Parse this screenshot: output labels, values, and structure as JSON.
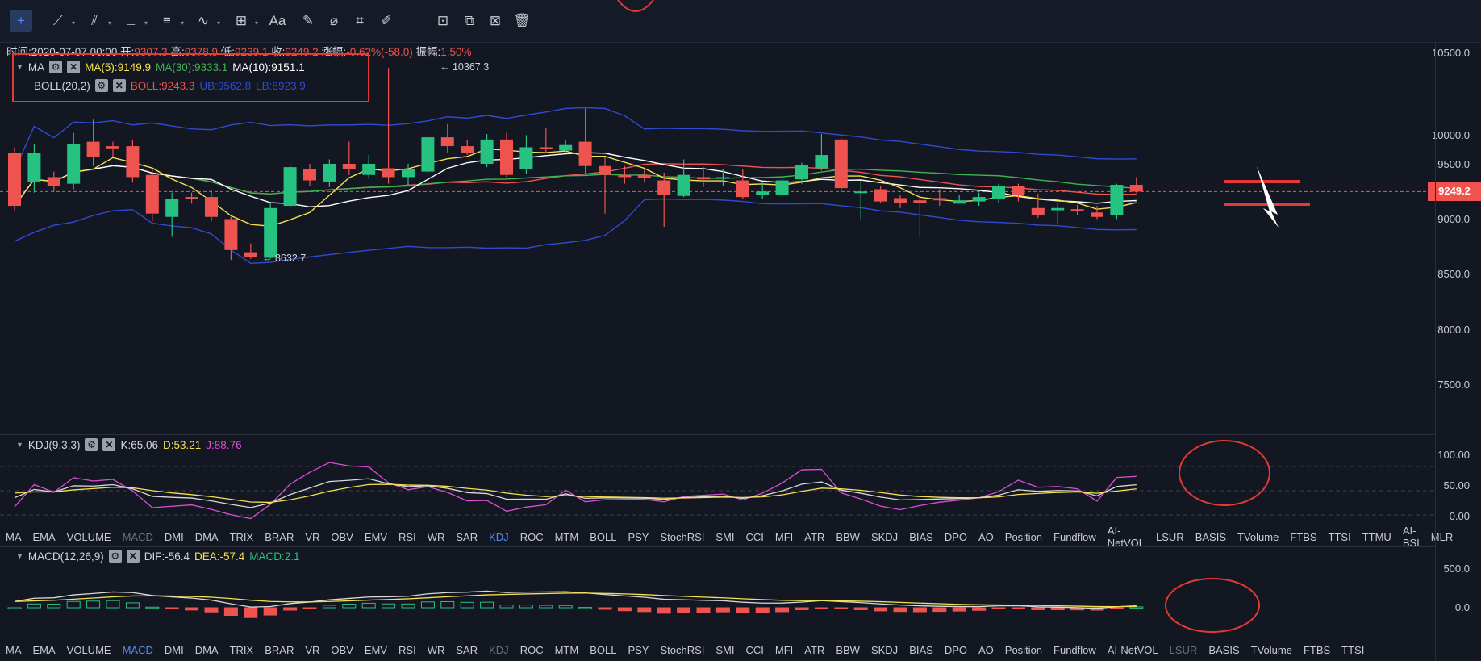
{
  "toolbar": {
    "tools": [
      {
        "name": "crosshair-icon",
        "glyph": "+",
        "caret": false
      },
      {
        "name": "trend-line-icon",
        "glyph": "⟋",
        "caret": true
      },
      {
        "name": "parallel-channel-icon",
        "glyph": "⫽",
        "caret": true
      },
      {
        "name": "angle-icon",
        "glyph": "∟",
        "caret": true
      },
      {
        "name": "fib-levels-icon",
        "glyph": "≡",
        "caret": true
      },
      {
        "name": "wave-icon",
        "glyph": "∿",
        "caret": true
      },
      {
        "name": "measure-icon",
        "glyph": "⊞",
        "caret": true
      },
      {
        "name": "text-icon",
        "glyph": "Aa",
        "caret": false
      },
      {
        "name": "brush-icon",
        "glyph": "✎",
        "caret": false
      },
      {
        "name": "magnet-icon",
        "glyph": "⌀",
        "caret": false
      },
      {
        "name": "ruler-icon",
        "glyph": "⌗",
        "caret": false
      },
      {
        "name": "pen-icon",
        "glyph": "✐",
        "caret": false
      },
      {
        "name": "lock-icon",
        "glyph": "⊡",
        "caret": false
      },
      {
        "name": "copy-icon",
        "glyph": "⧉",
        "caret": false
      },
      {
        "name": "settings-grid-icon",
        "glyph": "⊠",
        "caret": false
      },
      {
        "name": "trash-icon",
        "glyph": "🗑",
        "caret": false
      }
    ]
  },
  "info": {
    "time_label": "时间:",
    "time": "2020-07-07 00:00",
    "open_label": "开:",
    "open": "9307.3",
    "high_label": "高:",
    "high": "9378.9",
    "low_label": "低:",
    "low": "9239.1",
    "close_label": "收:",
    "close": "9249.2",
    "change_label": "涨幅:",
    "change": "-0.62%(-58.0)",
    "amp_label": "振幅:",
    "amp": "1.50%"
  },
  "ma_legend": {
    "name": "MA",
    "ma5": "MA(5):9149.9",
    "ma30": "MA(30):9333.1",
    "ma10": "MA(10):9151.1"
  },
  "boll_legend": {
    "name": "BOLL(20,2)",
    "boll": "BOLL:9243.3",
    "ub": "UB:9562.8",
    "lb": "LB:8923.9"
  },
  "annotations": {
    "high": "← 10367.3",
    "low": "← 8632.7"
  },
  "price_axis": [
    "10500.0",
    "10000.0",
    "9500.0",
    "9000.0",
    "8500.0",
    "8000.0",
    "7500.0"
  ],
  "current_price": "9249.2",
  "kdj_legend": {
    "name": "KDJ(9,3,3)",
    "k": "K:65.06",
    "d": "D:53.21",
    "j": "J:88.76"
  },
  "kdj_axis": [
    "100.00",
    "50.00",
    "0.00"
  ],
  "macd_legend": {
    "name": "MACD(12,26,9)",
    "dif": "DIF:-56.4",
    "dea": "DEA:-57.4",
    "macd": "MACD:2.1"
  },
  "macd_axis": [
    "500.0",
    "0.0"
  ],
  "tabs1": [
    "MA",
    "EMA",
    "VOLUME",
    "MACD",
    "DMI",
    "DMA",
    "TRIX",
    "BRAR",
    "VR",
    "OBV",
    "EMV",
    "RSI",
    "WR",
    "SAR",
    "KDJ",
    "ROC",
    "MTM",
    "BOLL",
    "PSY",
    "StochRSI",
    "SMI",
    "CCI",
    "MFI",
    "ATR",
    "BBW",
    "SKDJ",
    "BIAS",
    "DPO",
    "AO",
    "Position",
    "Fundflow",
    "AI-NetVOL",
    "LSUR",
    "BASIS",
    "TVolume",
    "FTBS",
    "TTSI",
    "TTMU",
    "AI-BSI",
    "MLR"
  ],
  "tabs1_selected": "KDJ",
  "tabs1_dim": [
    "MACD"
  ],
  "tabs2": [
    "MA",
    "EMA",
    "VOLUME",
    "MACD",
    "DMI",
    "DMA",
    "TRIX",
    "BRAR",
    "VR",
    "OBV",
    "EMV",
    "RSI",
    "WR",
    "SAR",
    "KDJ",
    "ROC",
    "MTM",
    "BOLL",
    "PSY",
    "StochRSI",
    "SMI",
    "CCI",
    "MFI",
    "ATR",
    "BBW",
    "SKDJ",
    "BIAS",
    "DPO",
    "AO",
    "Position",
    "Fundflow",
    "AI-NetVOL",
    "LSUR",
    "BASIS",
    "TVolume",
    "FTBS",
    "TTSI"
  ],
  "tabs2_selected": "MACD",
  "tabs2_dim": [
    "KDJ",
    "LSUR"
  ],
  "colors": {
    "up": "#26c281",
    "down": "#ef5350",
    "ma5": "#f4e04d",
    "ma10": "#ffffff",
    "ma30": "#3fb34f",
    "boll": "#ef5350",
    "band": "#2f4bd1",
    "kdj_k": "#d8d8d8",
    "kdj_d": "#f4e04d",
    "kdj_j": "#d94fd6",
    "highlight": "#e53935"
  },
  "chart_data": {
    "type": "candlestick",
    "price_scale": [
      7500,
      10500
    ],
    "candles": [
      [
        9600,
        9120,
        9650,
        9080
      ],
      [
        9340,
        9600,
        9680,
        9240
      ],
      [
        9380,
        9300,
        9430,
        9250
      ],
      [
        9320,
        9680,
        9780,
        9270
      ],
      [
        9700,
        9560,
        9900,
        9480
      ],
      [
        9660,
        9640,
        9700,
        9560
      ],
      [
        9660,
        9380,
        9720,
        9330
      ],
      [
        9400,
        9050,
        9450,
        8980
      ],
      [
        9020,
        9180,
        9240,
        8840
      ],
      [
        9200,
        9180,
        9240,
        9140
      ],
      [
        9200,
        9020,
        9260,
        8980
      ],
      [
        9000,
        8720,
        9020,
        8630
      ],
      [
        8700,
        8660,
        8780,
        8640
      ],
      [
        8650,
        9100,
        9150,
        8640
      ],
      [
        9120,
        9470,
        9500,
        9100
      ],
      [
        9450,
        9350,
        9500,
        9300
      ],
      [
        9340,
        9500,
        9540,
        9290
      ],
      [
        9500,
        9450,
        9700,
        9400
      ],
      [
        9400,
        9500,
        9580,
        9370
      ],
      [
        9460,
        9380,
        10367,
        9320
      ],
      [
        9380,
        9450,
        9500,
        9300
      ],
      [
        9430,
        9740,
        9760,
        9400
      ],
      [
        9740,
        9660,
        9860,
        9600
      ],
      [
        9660,
        9600,
        9720,
        9580
      ],
      [
        9500,
        9720,
        9770,
        9470
      ],
      [
        9720,
        9400,
        9780,
        9380
      ],
      [
        9450,
        9650,
        9760,
        9410
      ],
      [
        9650,
        9640,
        9820,
        9600
      ],
      [
        9620,
        9670,
        9720,
        9600
      ],
      [
        9700,
        9480,
        10000,
        9400
      ],
      [
        9480,
        9400,
        9560,
        9050
      ],
      [
        9400,
        9380,
        9480,
        9320
      ],
      [
        9400,
        9370,
        9450,
        9330
      ],
      [
        9350,
        9220,
        9420,
        8930
      ],
      [
        9210,
        9400,
        9540,
        9200
      ],
      [
        9380,
        9360,
        9470,
        9290
      ],
      [
        9380,
        9380,
        9450,
        9300
      ],
      [
        9350,
        9200,
        9450,
        9180
      ],
      [
        9220,
        9250,
        9330,
        9180
      ],
      [
        9220,
        9350,
        9380,
        9200
      ],
      [
        9360,
        9490,
        9510,
        9320
      ],
      [
        9460,
        9580,
        9770,
        9440
      ],
      [
        9720,
        9280,
        9730,
        9250
      ],
      [
        9250,
        9250,
        9350,
        9000
      ],
      [
        9270,
        9160,
        9300,
        9150
      ],
      [
        9190,
        9150,
        9220,
        9100
      ],
      [
        9170,
        9150,
        9250,
        8840
      ],
      [
        9190,
        9170,
        9270,
        9120
      ],
      [
        9140,
        9170,
        9220,
        9140
      ],
      [
        9160,
        9200,
        9240,
        9120
      ],
      [
        9180,
        9300,
        9320,
        9150
      ],
      [
        9300,
        9220,
        9320,
        9160
      ],
      [
        9100,
        9040,
        9230,
        9010
      ],
      [
        9080,
        9100,
        9140,
        8950
      ],
      [
        9090,
        9070,
        9130,
        9040
      ],
      [
        9060,
        9020,
        9120,
        9000
      ],
      [
        9040,
        9310,
        9320,
        9000
      ],
      [
        9310,
        9249,
        9379,
        9239
      ]
    ]
  }
}
